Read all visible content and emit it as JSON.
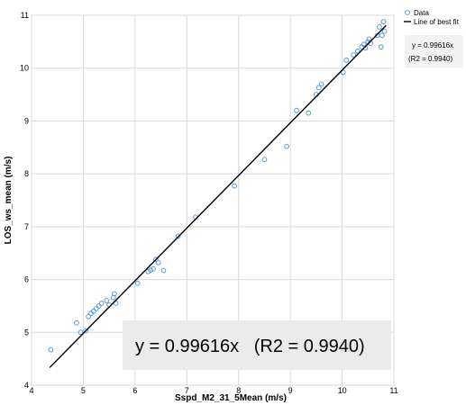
{
  "chart_data": {
    "type": "scatter",
    "xlabel": "Sspd_M2_31_5Mean (m/s)",
    "ylabel": "LOS_ws_mean (m/s)",
    "xlim": [
      4,
      11
    ],
    "ylim": [
      4,
      11
    ],
    "x_ticks": [
      "4",
      "5",
      "6",
      "7",
      "8",
      "9",
      "10",
      "11"
    ],
    "y_ticks": [
      "4",
      "5",
      "6",
      "7",
      "8",
      "9",
      "10",
      "11"
    ],
    "grid": true,
    "legend_position": "top-right",
    "legend": [
      {
        "label": "Data",
        "kind": "marker",
        "color": "#5b9bd5"
      },
      {
        "label": "Line of best fit",
        "kind": "line",
        "color": "#000000"
      }
    ],
    "fit": {
      "slope": 0.99616,
      "x_range": [
        4.35,
        10.85
      ]
    },
    "equation_small_line1": "y = 0.99616x",
    "equation_small_line2": "(R2 = 0.9940)",
    "equation_big": "y = 0.99616x   (R2 = 0.9940)",
    "series": [
      {
        "name": "Data",
        "points": [
          [
            4.37,
            4.67
          ],
          [
            4.87,
            5.18
          ],
          [
            4.95,
            5.0
          ],
          [
            5.05,
            5.03
          ],
          [
            5.1,
            5.3
          ],
          [
            5.15,
            5.36
          ],
          [
            5.2,
            5.4
          ],
          [
            5.25,
            5.45
          ],
          [
            5.3,
            5.5
          ],
          [
            5.35,
            5.55
          ],
          [
            5.45,
            5.6
          ],
          [
            5.5,
            5.52
          ],
          [
            5.58,
            5.66
          ],
          [
            5.6,
            5.73
          ],
          [
            5.63,
            5.55
          ],
          [
            6.05,
            5.93
          ],
          [
            6.25,
            6.15
          ],
          [
            6.3,
            6.18
          ],
          [
            6.35,
            6.2
          ],
          [
            6.4,
            6.38
          ],
          [
            6.45,
            6.32
          ],
          [
            6.55,
            6.17
          ],
          [
            6.83,
            6.82
          ],
          [
            7.17,
            7.18
          ],
          [
            7.92,
            7.77
          ],
          [
            8.5,
            8.27
          ],
          [
            8.93,
            8.52
          ],
          [
            9.12,
            9.2
          ],
          [
            9.35,
            9.15
          ],
          [
            9.5,
            9.5
          ],
          [
            9.55,
            9.63
          ],
          [
            9.6,
            9.7
          ],
          [
            10.02,
            9.92
          ],
          [
            10.08,
            10.15
          ],
          [
            10.22,
            10.25
          ],
          [
            10.3,
            10.32
          ],
          [
            10.38,
            10.4
          ],
          [
            10.42,
            10.45
          ],
          [
            10.45,
            10.38
          ],
          [
            10.5,
            10.5
          ],
          [
            10.52,
            10.55
          ],
          [
            10.55,
            10.47
          ],
          [
            10.68,
            10.62
          ],
          [
            10.72,
            10.78
          ],
          [
            10.75,
            10.4
          ],
          [
            10.77,
            10.62
          ],
          [
            10.82,
            10.7
          ],
          [
            10.8,
            10.88
          ]
        ]
      }
    ]
  }
}
